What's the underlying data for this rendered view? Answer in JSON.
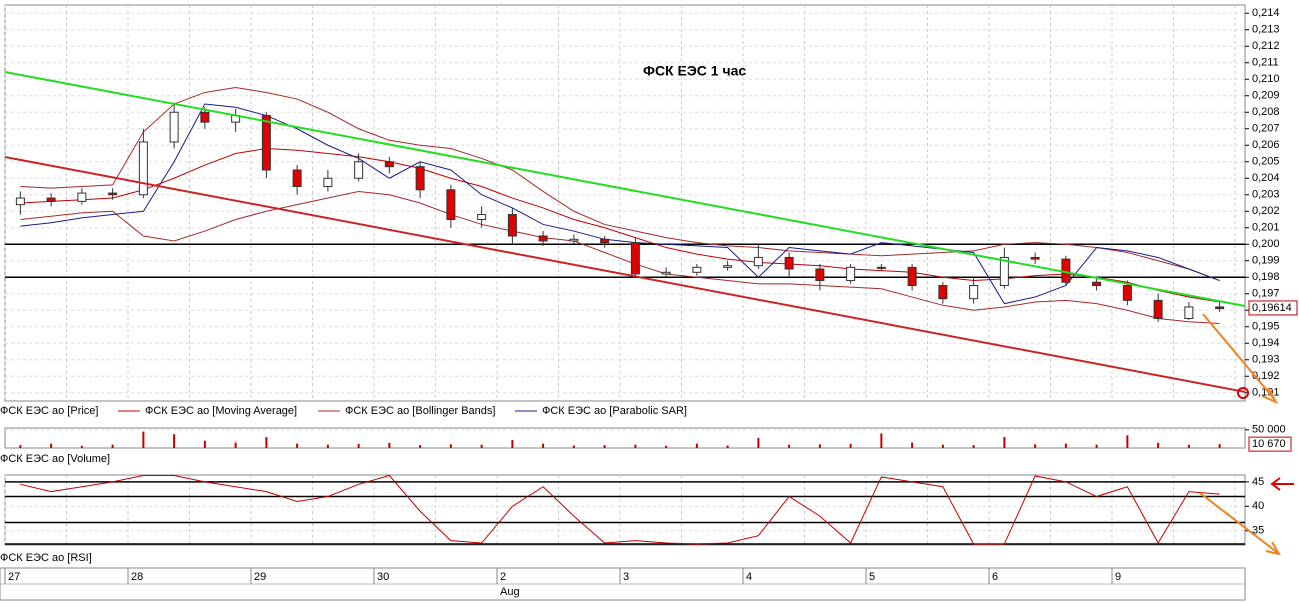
{
  "chart_data": [
    {
      "type": "candlestick",
      "title": "ФСК  ЕЭС      1 час",
      "open": [
        0.2024,
        0.2028,
        0.2026,
        0.2031,
        0.203,
        0.2062,
        0.208,
        0.2074,
        0.2078,
        0.2045,
        0.2035,
        0.204,
        0.205,
        0.2047,
        0.2033,
        0.2015,
        0.2018,
        0.2005,
        0.2002,
        0.2003,
        0.2001,
        0.1982,
        0.1983,
        0.1986,
        0.1987,
        0.1992,
        0.1985,
        0.1978,
        0.1986,
        0.1986,
        0.1975,
        0.1967,
        0.1975,
        0.1992,
        0.1991,
        0.1977,
        0.1975,
        0.1966,
        0.1955,
        0.1962
      ],
      "high": [
        0.2032,
        0.2031,
        0.2034,
        0.2034,
        0.207,
        0.2086,
        0.2083,
        0.2082,
        0.208,
        0.2048,
        0.2045,
        0.2055,
        0.2053,
        0.205,
        0.2036,
        0.2023,
        0.2022,
        0.2008,
        0.2006,
        0.2005,
        0.2004,
        0.1986,
        0.1988,
        0.199,
        0.2,
        0.1995,
        0.1988,
        0.1988,
        0.1988,
        0.1988,
        0.1977,
        0.198,
        0.1998,
        0.1995,
        0.1993,
        0.1979,
        0.1978,
        0.197,
        0.1965,
        0.1966
      ],
      "low": [
        0.2018,
        0.2023,
        0.2024,
        0.2027,
        0.2028,
        0.2058,
        0.207,
        0.2068,
        0.204,
        0.203,
        0.2032,
        0.2038,
        0.2043,
        0.2028,
        0.201,
        0.201,
        0.2,
        0.1999,
        0.2,
        0.1998,
        0.198,
        0.198,
        0.1981,
        0.1984,
        0.1985,
        0.198,
        0.1972,
        0.1976,
        0.1984,
        0.1972,
        0.1964,
        0.1964,
        0.1973,
        0.1988,
        0.1975,
        0.1972,
        0.1963,
        0.1953,
        0.1954,
        0.1959
      ],
      "close": [
        0.2028,
        0.2026,
        0.2031,
        0.203,
        0.2062,
        0.208,
        0.2074,
        0.2078,
        0.2045,
        0.2035,
        0.204,
        0.205,
        0.2047,
        0.2033,
        0.2015,
        0.2018,
        0.2005,
        0.2002,
        0.2003,
        0.2001,
        0.1982,
        0.1983,
        0.1986,
        0.1987,
        0.1992,
        0.1985,
        0.1978,
        0.1986,
        0.1986,
        0.1975,
        0.1967,
        0.1975,
        0.1992,
        0.1991,
        0.1977,
        0.1975,
        0.1966,
        0.1955,
        0.1962,
        0.1961
      ],
      "ma": [
        0.2025,
        0.2026,
        0.2027,
        0.2028,
        0.2033,
        0.204,
        0.2048,
        0.2055,
        0.2058,
        0.2057,
        0.2055,
        0.2053,
        0.205,
        0.2046,
        0.204,
        0.2035,
        0.2028,
        0.2022,
        0.2015,
        0.201,
        0.2004,
        0.1998,
        0.1994,
        0.1991,
        0.1989,
        0.1988,
        0.1987,
        0.1985,
        0.1984,
        0.1983,
        0.198,
        0.1978,
        0.1979,
        0.1981,
        0.1982,
        0.198,
        0.1977,
        0.1972,
        0.1968,
        0.1965
      ],
      "bb_upper": [
        0.2035,
        0.2034,
        0.2035,
        0.2036,
        0.2068,
        0.2085,
        0.2092,
        0.2095,
        0.2092,
        0.2088,
        0.208,
        0.207,
        0.2063,
        0.206,
        0.2058,
        0.2052,
        0.2045,
        0.2032,
        0.202,
        0.2012,
        0.2008,
        0.2004,
        0.2001,
        0.1999,
        0.1998,
        0.1996,
        0.1995,
        0.1994,
        0.1993,
        0.1994,
        0.1995,
        0.1996,
        0.2,
        0.2001,
        0.2,
        0.1998,
        0.1995,
        0.199,
        0.1985,
        0.1978
      ],
      "bb_lower": [
        0.2015,
        0.2017,
        0.2019,
        0.202,
        0.2005,
        0.2002,
        0.2008,
        0.2015,
        0.202,
        0.2024,
        0.2028,
        0.2032,
        0.203,
        0.2025,
        0.2018,
        0.2012,
        0.2008,
        0.2004,
        0.2002,
        0.1995,
        0.1988,
        0.1982,
        0.198,
        0.1978,
        0.1976,
        0.1976,
        0.1975,
        0.1974,
        0.1973,
        0.1968,
        0.1963,
        0.196,
        0.1962,
        0.1965,
        0.1966,
        0.1964,
        0.196,
        0.1955,
        0.1953,
        0.1952
      ],
      "sar": [
        0.2011,
        0.2013,
        0.2016,
        0.2018,
        0.202,
        0.205,
        0.2085,
        0.2083,
        0.2078,
        0.207,
        0.206,
        0.2052,
        0.204,
        0.205,
        0.2045,
        0.203,
        0.2022,
        0.2012,
        0.2008,
        0.2003,
        0.2001,
        0.2,
        0.1999,
        0.1998,
        0.198,
        0.1998,
        0.1996,
        0.1994,
        0.2001,
        0.1999,
        0.1997,
        0.1995,
        0.1964,
        0.1968,
        0.1975,
        0.1998,
        0.1996,
        0.1992,
        0.1985,
        0.1978
      ],
      "legend": [
        {
          "name": "ФСК ЕЭС ао [Price]",
          "color": "#c00000"
        },
        {
          "name": "ФСК ЕЭС ао [Moving Average]",
          "color": "#c00000"
        },
        {
          "name": "ФСК ЕЭС ао [Bollinger Bands]",
          "color": "#a52a2a"
        },
        {
          "name": "ФСК ЕЭС ао [Parabolic SAR]",
          "color": "#1a1a8c"
        }
      ],
      "levels": [
        0.2,
        0.198
      ],
      "trendlines": [
        {
          "color": "#22dd22",
          "values": [
            0.21044,
            0.19626
          ]
        },
        {
          "color": "#cc2222",
          "values": [
            0.20529,
            0.19105
          ]
        }
      ],
      "last": {
        "value": 0.19614,
        "label": "0,19614"
      },
      "ylim": [
        0.1905,
        0.2145
      ],
      "yticks": [
        {
          "value": 0.214,
          "label": "0,214"
        },
        {
          "value": 0.213,
          "label": "0,213"
        },
        {
          "value": 0.212,
          "label": "0,212"
        },
        {
          "value": 0.211,
          "label": "0,211"
        },
        {
          "value": 0.21,
          "label": "0,210"
        },
        {
          "value": 0.209,
          "label": "0,209"
        },
        {
          "value": 0.208,
          "label": "0,208"
        },
        {
          "value": 0.207,
          "label": "0,207"
        },
        {
          "value": 0.206,
          "label": "0,206"
        },
        {
          "value": 0.205,
          "label": "0,205"
        },
        {
          "value": 0.204,
          "label": "0,204"
        },
        {
          "value": 0.203,
          "label": "0,203"
        },
        {
          "value": 0.202,
          "label": "0,202"
        },
        {
          "value": 0.201,
          "label": "0,201"
        },
        {
          "value": 0.2,
          "label": "0,200"
        },
        {
          "value": 0.199,
          "label": "0,199"
        },
        {
          "value": 0.198,
          "label": "0,198"
        },
        {
          "value": 0.197,
          "label": "0,197"
        },
        {
          "value": 0.196,
          "label": "0,196"
        },
        {
          "value": 0.195,
          "label": "0,195"
        },
        {
          "value": 0.194,
          "label": "0,194"
        },
        {
          "value": 0.193,
          "label": "0,193"
        },
        {
          "value": 0.192,
          "label": "0,192"
        },
        {
          "value": 0.191,
          "label": "0,191"
        }
      ],
      "days": [
        "27",
        "28",
        "29",
        "30",
        "2",
        "3",
        "4",
        "5",
        "6",
        "9"
      ],
      "month": "Aug"
    },
    {
      "type": "bar",
      "name": "ФСК ЕЭС ао [Volume]",
      "color": "#c00000",
      "values": [
        8000,
        12000,
        6000,
        9000,
        45000,
        38000,
        20000,
        15000,
        30000,
        12000,
        9000,
        11000,
        14000,
        8000,
        10000,
        9000,
        22000,
        12000,
        7000,
        8000,
        9000,
        6000,
        12000,
        7000,
        28000,
        9000,
        10000,
        11000,
        40000,
        15000,
        9000,
        8000,
        30000,
        10000,
        12000,
        9000,
        35000,
        14000,
        9000,
        10670
      ],
      "last": {
        "value": 10670,
        "label": "10 670"
      },
      "ylim": [
        0,
        55000
      ],
      "yticks": [
        {
          "value": 50000,
          "label": "50 000"
        }
      ]
    },
    {
      "type": "line",
      "name": "ФСК ЕЭС ао [RSI]",
      "color": "#c00000",
      "values": [
        44.5,
        43,
        44,
        45,
        46.3,
        46.3,
        45,
        44,
        43,
        41,
        42,
        44.5,
        46.3,
        39,
        33,
        32.5,
        40,
        44,
        38,
        32.5,
        33,
        32.5,
        32.3,
        32.5,
        34,
        42,
        38,
        32.5,
        46,
        45,
        44,
        32.3,
        32.3,
        46.2,
        45,
        42,
        44,
        32.5,
        43,
        42.5
      ],
      "levels": [
        45,
        42,
        36.7,
        32.3
      ],
      "ylim": [
        32.1,
        46.4
      ],
      "yticks": [
        45,
        40,
        35
      ]
    }
  ]
}
